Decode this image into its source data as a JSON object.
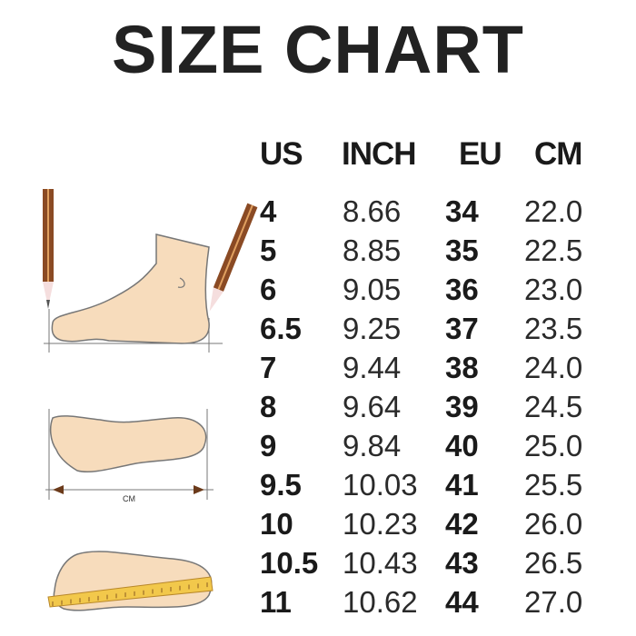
{
  "title": "SIZE CHART",
  "headers": {
    "us": "US",
    "inch": "INCH",
    "eu": "EU",
    "cm": "CM"
  },
  "rows": [
    {
      "us": "4",
      "inch": "8.66",
      "eu": "34",
      "cm": "22.0"
    },
    {
      "us": "5",
      "inch": "8.85",
      "eu": "35",
      "cm": "22.5"
    },
    {
      "us": "6",
      "inch": "9.05",
      "eu": "36",
      "cm": "23.0"
    },
    {
      "us": "6.5",
      "inch": "9.25",
      "eu": "37",
      "cm": "23.5"
    },
    {
      "us": "7",
      "inch": "9.44",
      "eu": "38",
      "cm": "24.0"
    },
    {
      "us": "8",
      "inch": "9.64",
      "eu": "39",
      "cm": "24.5"
    },
    {
      "us": "9",
      "inch": "9.84",
      "eu": "40",
      "cm": "25.0"
    },
    {
      "us": "9.5",
      "inch": "10.03",
      "eu": "41",
      "cm": "25.5"
    },
    {
      "us": "10",
      "inch": "10.23",
      "eu": "42",
      "cm": "26.0"
    },
    {
      "us": "10.5",
      "inch": "10.43",
      "eu": "43",
      "cm": "26.5"
    },
    {
      "us": "11",
      "inch": "10.62",
      "eu": "44",
      "cm": "27.0"
    }
  ],
  "illustration": {
    "measure_label": "CM",
    "skin_color": "#f7dcbc",
    "ruler_color": "#f2c84b"
  }
}
